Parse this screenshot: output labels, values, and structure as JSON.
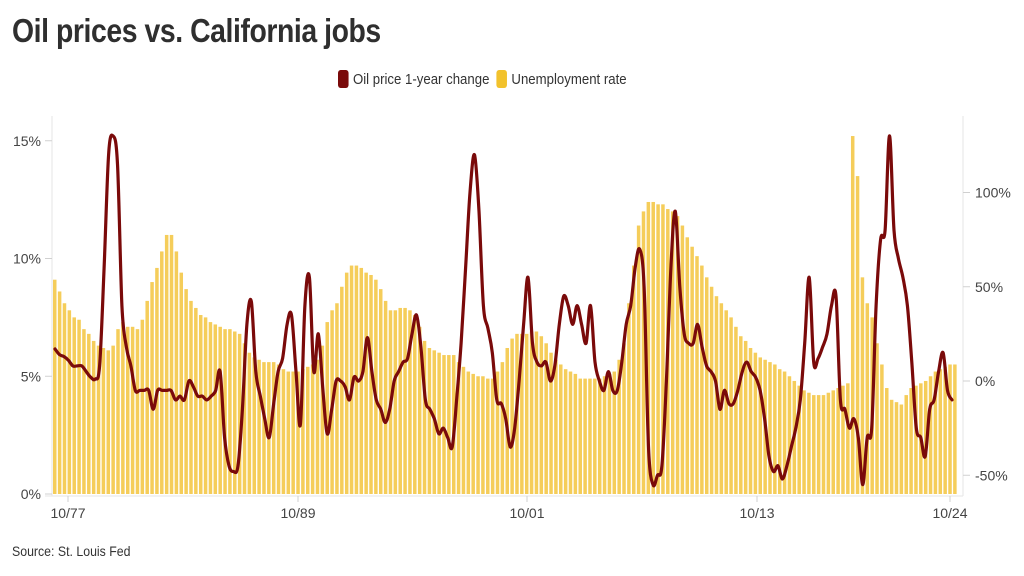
{
  "title": "Oil prices vs. California jobs",
  "legend": {
    "items": [
      {
        "label": "Oil price 1-year change",
        "color": "#7a0a0a"
      },
      {
        "label": "Unemployment rate",
        "color": "#f2c22c"
      }
    ]
  },
  "source": "Source: St. Louis Fed",
  "colors": {
    "oil_line": "#7a0a0a",
    "unemployment_bar": "#f5cd5a",
    "grid": "#e6e6e6",
    "text": "#444444"
  },
  "chart_data": {
    "type": "bar+line",
    "title": "Oil prices vs. California jobs",
    "xlabel": "",
    "ylabel_left": "Unemployment rate",
    "ylabel_right": "Oil price 1-year change",
    "x_ticks": [
      "10/77",
      "10/89",
      "10/01",
      "10/13",
      "10/24"
    ],
    "left_axis": {
      "ticks": [
        "0%",
        "5%",
        "10%",
        "15%"
      ],
      "values": [
        0,
        5,
        10,
        15
      ],
      "ylim": [
        0,
        15.6
      ]
    },
    "right_axis": {
      "ticks": [
        "-50%",
        "0%",
        "50%",
        "100%"
      ],
      "values": [
        -50,
        0,
        50,
        100
      ],
      "ylim": [
        -60,
        135
      ]
    },
    "grid": false,
    "legend_position": "top",
    "x_start": "1977-10",
    "x_end": "2024-10",
    "frequency": "quarterly",
    "series": [
      {
        "name": "Unemployment rate",
        "type": "bar",
        "axis": "left",
        "unit": "%",
        "values": [
          9.1,
          8.6,
          8.1,
          7.8,
          7.5,
          7.4,
          7.0,
          6.8,
          6.5,
          6.3,
          6.2,
          6.1,
          6.3,
          7.0,
          7.3,
          7.1,
          7.1,
          7.0,
          7.4,
          8.2,
          9.0,
          9.6,
          10.3,
          11.0,
          11.0,
          10.3,
          9.4,
          8.7,
          8.2,
          7.9,
          7.6,
          7.5,
          7.3,
          7.2,
          7.1,
          7.0,
          7.0,
          6.9,
          6.8,
          6.4,
          6.0,
          5.8,
          5.7,
          5.6,
          5.6,
          5.6,
          5.5,
          5.3,
          5.2,
          5.2,
          5.2,
          5.3,
          5.4,
          5.5,
          5.7,
          6.3,
          7.3,
          7.8,
          8.1,
          8.8,
          9.4,
          9.7,
          9.7,
          9.6,
          9.4,
          9.3,
          9.1,
          8.7,
          8.2,
          7.8,
          7.8,
          7.9,
          7.9,
          7.8,
          7.6,
          7.1,
          6.5,
          6.2,
          6.1,
          6.0,
          5.9,
          5.9,
          5.9,
          5.6,
          5.4,
          5.2,
          5.1,
          5.0,
          5.0,
          4.9,
          4.9,
          5.2,
          5.6,
          6.2,
          6.6,
          6.8,
          6.8,
          6.8,
          6.9,
          6.9,
          6.7,
          6.4,
          6.0,
          5.7,
          5.5,
          5.3,
          5.2,
          5.1,
          4.9,
          4.9,
          4.9,
          4.9,
          4.9,
          5.0,
          5.1,
          5.2,
          5.7,
          6.4,
          8.1,
          9.7,
          11.4,
          12.0,
          12.4,
          12.4,
          12.3,
          12.3,
          12.1,
          12.0,
          11.8,
          11.4,
          10.9,
          10.5,
          10.1,
          9.7,
          9.2,
          8.8,
          8.4,
          8.1,
          7.8,
          7.5,
          7.1,
          6.7,
          6.5,
          6.2,
          6.0,
          5.8,
          5.7,
          5.6,
          5.5,
          5.3,
          5.2,
          5.0,
          4.8,
          4.6,
          4.4,
          4.3,
          4.2,
          4.2,
          4.2,
          4.3,
          4.4,
          4.5,
          4.6,
          4.7,
          15.2,
          13.5,
          9.2,
          8.1,
          7.5,
          6.4,
          5.5,
          4.5,
          4.0,
          3.9,
          3.8,
          4.2,
          4.5,
          4.6,
          4.7,
          4.8,
          5.0,
          5.2,
          5.3,
          5.4,
          5.5,
          5.5
        ],
        "notes": "Quarterly CA unemployment rate read off bar heights; peak ~15.2% in 2020, ~12.4% in 2010, ~11% in 1982"
      },
      {
        "name": "Oil price 1-year change",
        "type": "line",
        "axis": "right",
        "unit": "%",
        "values": [
          17,
          14,
          13,
          11,
          8,
          8,
          8,
          5,
          2,
          1,
          8,
          60,
          120,
          130,
          115,
          40,
          18,
          8,
          -5,
          -5,
          -5,
          -5,
          -15,
          -5,
          -5,
          -5,
          -5,
          -10,
          -8,
          -10,
          0,
          -3,
          -8,
          -8,
          -10,
          -8,
          -5,
          5,
          -30,
          -45,
          -48,
          -45,
          -15,
          30,
          42,
          5,
          -8,
          -20,
          -30,
          -12,
          5,
          12,
          30,
          35,
          5,
          -23,
          40,
          55,
          5,
          25,
          -4,
          -28,
          -15,
          0,
          0,
          -3,
          -10,
          2,
          0,
          5,
          23,
          5,
          -10,
          -15,
          -22,
          -15,
          0,
          5,
          10,
          12,
          25,
          35,
          18,
          -10,
          -15,
          -20,
          -28,
          -25,
          -30,
          -35,
          -10,
          20,
          60,
          100,
          120,
          90,
          40,
          28,
          15,
          -10,
          -12,
          -20,
          -35,
          -25,
          0,
          30,
          55,
          20,
          10,
          8,
          10,
          0,
          8,
          30,
          45,
          40,
          30,
          40,
          30,
          20,
          40,
          10,
          0,
          -5,
          5,
          -5,
          -5,
          10,
          30,
          40,
          60,
          70,
          50,
          -35,
          -55,
          -50,
          -45,
          0,
          60,
          90,
          50,
          25,
          20,
          20,
          30,
          18,
          8,
          5,
          0,
          -15,
          -5,
          -12,
          -12,
          -5,
          5,
          10,
          5,
          2,
          -5,
          -20,
          -40,
          -48,
          -45,
          -52,
          -45,
          -35,
          -25,
          -10,
          20,
          55,
          10,
          12,
          18,
          25,
          40,
          45,
          -10,
          -15,
          -25,
          -20,
          -30,
          -55,
          -30,
          -25,
          40,
          75,
          80,
          130,
          80,
          65,
          55,
          40,
          10,
          -25,
          -30,
          -40,
          -15,
          -10,
          5,
          15,
          -5,
          -10
        ],
        "notes": "Smoothed 1-yr % change in oil price; major peaks ~130% (1979), ~120% (2000), ~90% (2007), ~135% (2021); troughs ~-55% (2009, 2020)"
      }
    ]
  }
}
